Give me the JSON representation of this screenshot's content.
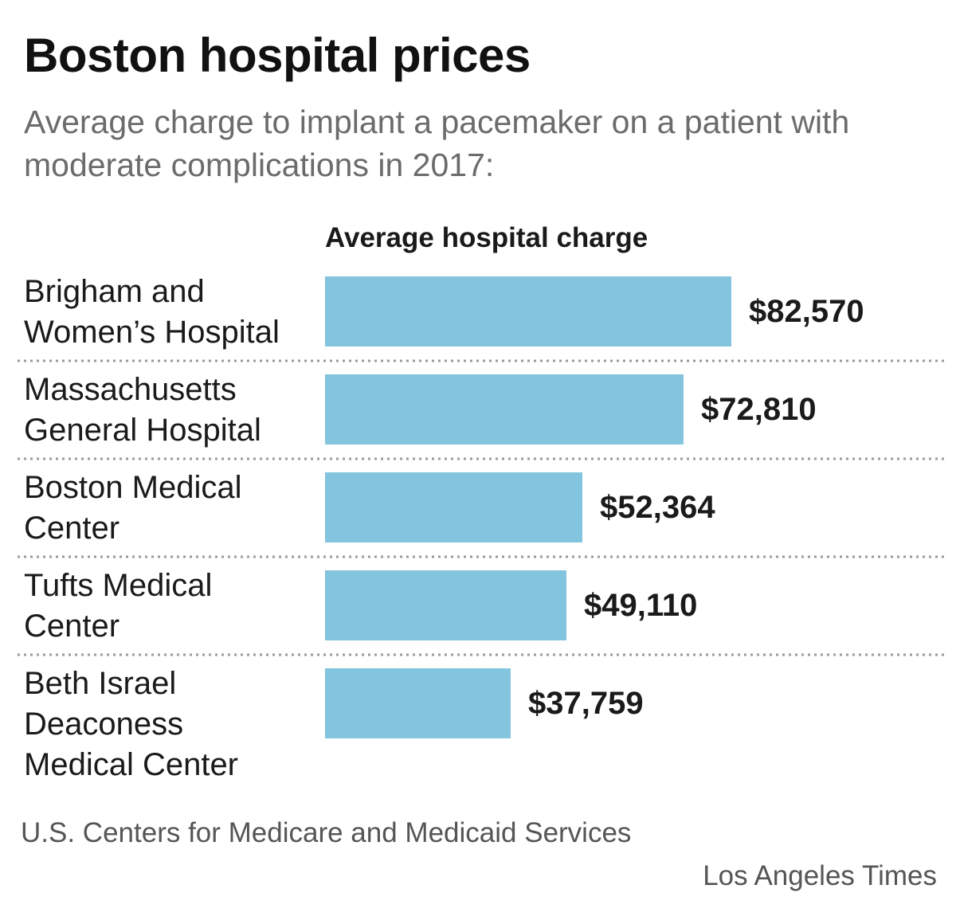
{
  "header": {
    "title": "Boston hospital prices",
    "subtitle": "Average charge to implant a pacemaker on a patient with moderate complications in 2017:"
  },
  "chart_data": {
    "type": "bar",
    "orientation": "horizontal",
    "column_header": "Average hospital charge",
    "categories": [
      [
        "Brigham and",
        "Women’s Hospital"
      ],
      [
        "Massachusetts",
        "General Hospital"
      ],
      [
        "Boston Medical",
        "Center"
      ],
      [
        "Tufts Medical",
        "Center"
      ],
      [
        "Beth Israel",
        "Deaconess",
        "Medical Center"
      ]
    ],
    "values": [
      82570,
      72810,
      52364,
      49110,
      37759
    ],
    "value_labels": [
      "$82,570",
      "$72,810",
      "$52,364",
      "$49,110",
      "$37,759"
    ],
    "xlim": [
      0,
      82570
    ],
    "grid": false,
    "legend": "none",
    "bar_color": "#83c5df",
    "separator_style": "dotted"
  },
  "footer": {
    "source": "U.S. Centers for Medicare and Medicaid Services",
    "credit": "Los Angeles Times"
  }
}
